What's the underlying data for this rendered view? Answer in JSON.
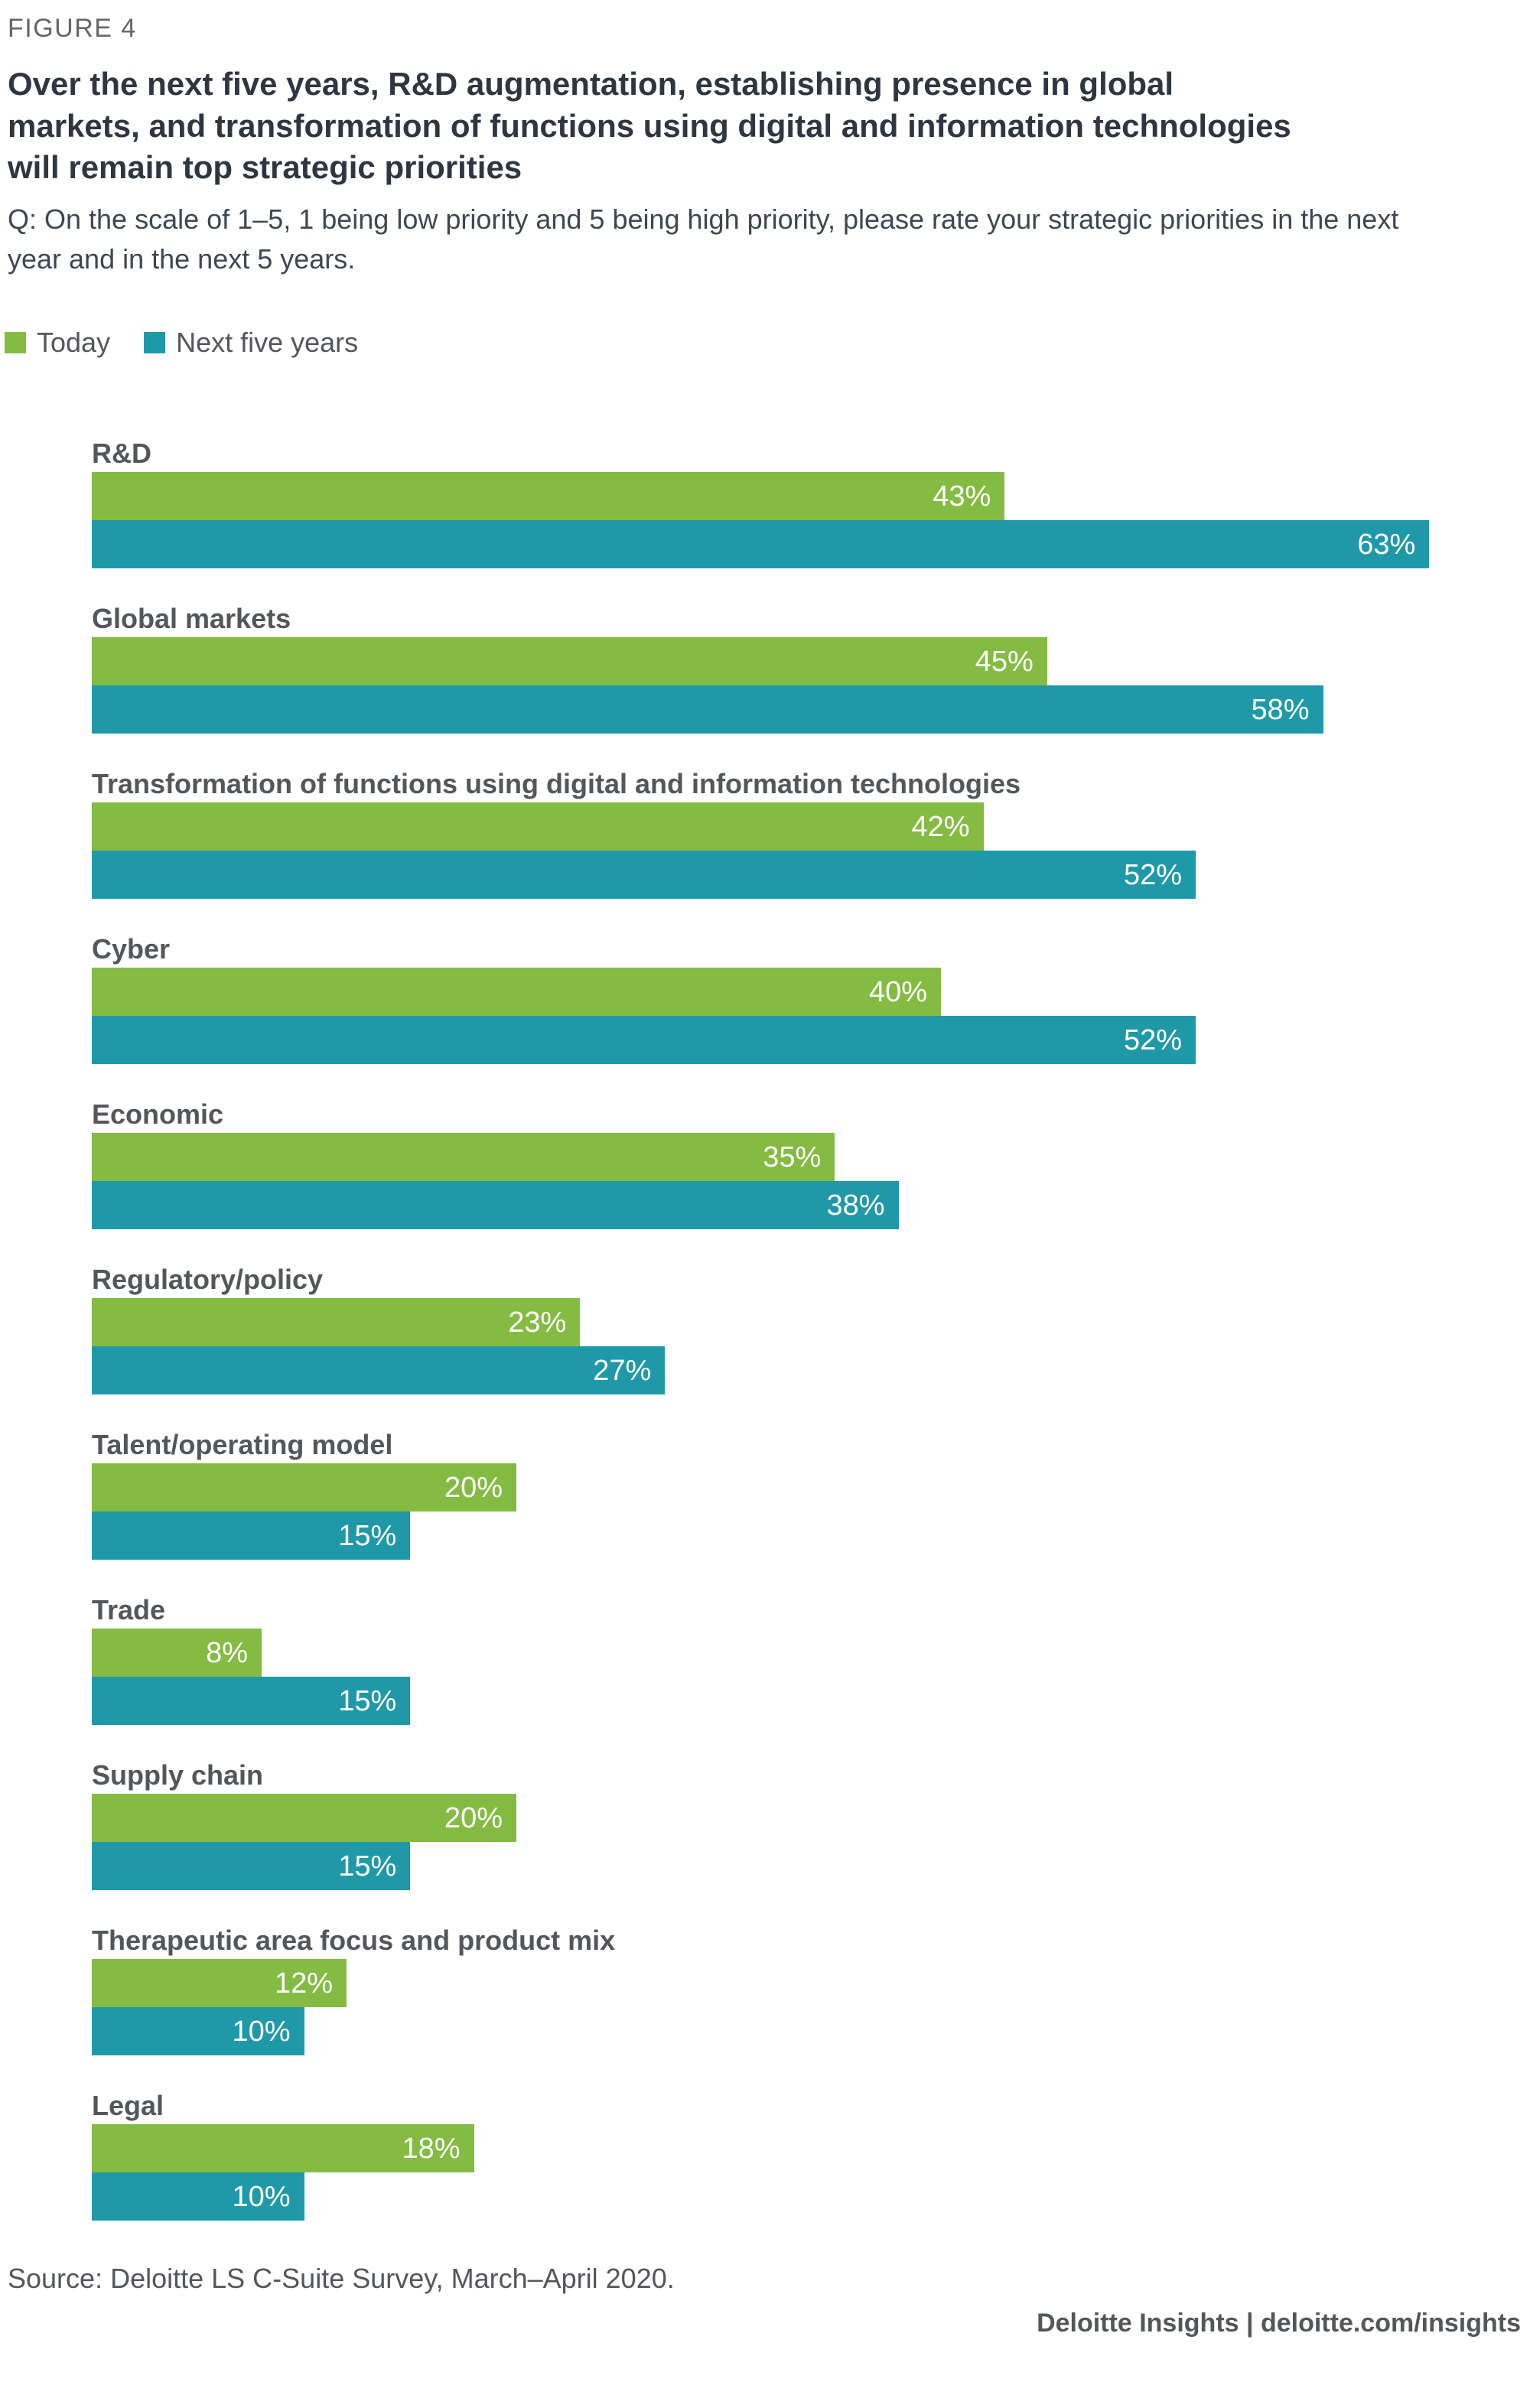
{
  "figure_label": "FIGURE 4",
  "title": "Over the next five years, R&D augmentation, establishing presence in global markets, and transformation of functions using digital and information technologies will remain top strategic priorities",
  "question": "Q: On the scale of 1–5, 1 being low priority and 5 being high priority, please rate your strategic priorities in the next year and in the next 5 years.",
  "legend": {
    "today_label": "Today",
    "next_label": "Next five years"
  },
  "colors": {
    "today_green": "#84BC43",
    "next_teal": "#1F99A8",
    "title_dark": "#2F3642",
    "label_gray": "#53565A",
    "value_text": "#FFFFFF"
  },
  "chart_data": {
    "type": "bar",
    "orientation": "horizontal",
    "unit": "%",
    "xlim": [
      0,
      67
    ],
    "grid": false,
    "legend_position": "top-left",
    "value_labels": "inside-right",
    "categories": [
      "R&D",
      "Global markets",
      "Transformation of functions using digital and information technologies",
      "Cyber",
      "Economic",
      "Regulatory/policy",
      "Talent/operating model",
      "Trade",
      "Supply chain",
      "Therapeutic area focus and product mix",
      "Legal"
    ],
    "series": [
      {
        "name": "Today",
        "color": "#84BC43",
        "values": [
          43,
          45,
          42,
          40,
          35,
          23,
          20,
          8,
          20,
          12,
          18
        ]
      },
      {
        "name": "Next five years",
        "color": "#1F99A8",
        "values": [
          63,
          58,
          52,
          52,
          38,
          27,
          15,
          15,
          15,
          10,
          10
        ]
      }
    ]
  },
  "source": "Source: Deloitte LS C-Suite Survey, March–April 2020.",
  "footer": "Deloitte Insights | deloitte.com/insights"
}
